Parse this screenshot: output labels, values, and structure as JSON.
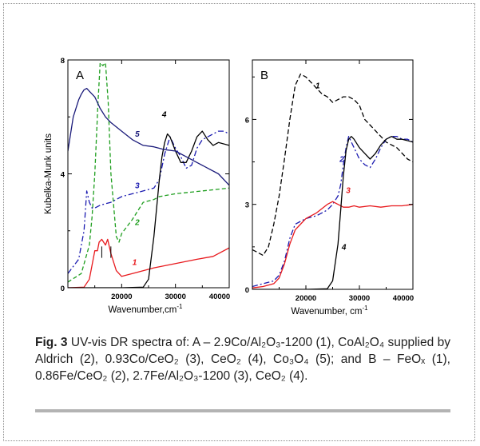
{
  "chart_data": [
    {
      "type": "line",
      "panel_label": "A",
      "xlabel": "Wavenumber,cm",
      "xlabel_sup": "-1",
      "ylabel": "Kubelka-Munk units",
      "xlim": [
        10000,
        40000
      ],
      "ylim": [
        0,
        8
      ],
      "xticks": [
        20000,
        30000,
        40000
      ],
      "yticks": [
        0,
        4,
        8
      ],
      "grid": false,
      "series": [
        {
          "name": "1",
          "color": "#e8191d",
          "dash": "solid",
          "x": [
            10000,
            13000,
            14000,
            14500,
            15000,
            15500,
            15800,
            16300,
            17000,
            17400,
            18000,
            19000,
            20000,
            22000,
            26000,
            30000,
            34000,
            37000,
            40000
          ],
          "y": [
            0,
            0.02,
            0.3,
            0.8,
            1.3,
            1.3,
            1.6,
            1.7,
            1.5,
            1.7,
            1.2,
            0.6,
            0.4,
            0.5,
            0.7,
            0.85,
            1.0,
            1.1,
            1.4
          ]
        },
        {
          "name": "2",
          "color": "#1e9e1e",
          "dash": "5,3",
          "x": [
            10000,
            12500,
            14000,
            14500,
            15000,
            15600,
            16000,
            16500,
            17000,
            17500,
            18000,
            19000,
            19500,
            20000,
            22000,
            24000,
            26000,
            27000,
            30000,
            35000,
            40000
          ],
          "y": [
            0.2,
            0.5,
            1.5,
            2.5,
            4.0,
            6.5,
            7.9,
            7.8,
            7.9,
            6.5,
            4.0,
            1.8,
            1.6,
            1.9,
            2.4,
            3.0,
            3.1,
            3.2,
            3.3,
            3.4,
            3.5
          ]
        },
        {
          "name": "3",
          "color": "#1a1ab0",
          "dash": "7,3,2,3",
          "x": [
            10000,
            12000,
            13000,
            13500,
            14000,
            14500,
            15000,
            16000,
            18000,
            20000,
            22000,
            24000,
            26000,
            27000,
            28000,
            29000,
            30000,
            31000,
            32000,
            33000,
            34000,
            35000,
            36000,
            37000,
            38000,
            39000,
            40000
          ],
          "y": [
            0.5,
            1.0,
            2.0,
            3.4,
            3.0,
            2.8,
            2.8,
            2.9,
            3.0,
            3.2,
            3.3,
            3.4,
            3.5,
            3.8,
            4.7,
            5.3,
            4.9,
            4.6,
            4.2,
            4.3,
            4.9,
            5.2,
            5.3,
            5.4,
            5.5,
            5.5,
            5.4
          ]
        },
        {
          "name": "4",
          "color": "#000000",
          "dash": "solid",
          "x": [
            10000,
            20000,
            24000,
            25000,
            26000,
            26500,
            27000,
            27500,
            28000,
            28500,
            29000,
            30000,
            31000,
            32000,
            33000,
            34000,
            35000,
            36000,
            37000,
            38000,
            40000
          ],
          "y": [
            0,
            0,
            0.02,
            0.3,
            1.8,
            2.8,
            3.8,
            4.6,
            5.1,
            5.4,
            5.3,
            4.8,
            4.4,
            4.4,
            4.8,
            5.3,
            5.5,
            5.2,
            5.0,
            5.1,
            5.0
          ]
        },
        {
          "name": "5",
          "color": "#1a1a7a",
          "dash": "solid",
          "x": [
            10000,
            11000,
            12000,
            12500,
            13000,
            13500,
            14000,
            15000,
            16000,
            17000,
            18000,
            20000,
            22000,
            24000,
            26000,
            28000,
            30000,
            32000,
            34000,
            36000,
            38000,
            40000
          ],
          "y": [
            4.8,
            6.0,
            6.6,
            6.8,
            6.95,
            7.0,
            6.9,
            6.7,
            6.3,
            6.0,
            5.8,
            5.5,
            5.2,
            5.0,
            4.95,
            4.85,
            4.8,
            4.6,
            4.4,
            4.2,
            4.0,
            3.6
          ]
        }
      ],
      "labels": [
        {
          "text": "5",
          "x": 22500,
          "y": 5.3,
          "color": "#1a1a7a"
        },
        {
          "text": "4",
          "x": 27500,
          "y": 6.0,
          "color": "#000000"
        },
        {
          "text": "3",
          "x": 22500,
          "y": 3.5,
          "color": "#1a1ab0"
        },
        {
          "text": "2",
          "x": 22500,
          "y": 2.2,
          "color": "#1e9e1e"
        },
        {
          "text": "1",
          "x": 22000,
          "y": 0.8,
          "color": "#e8191d"
        }
      ]
    },
    {
      "type": "line",
      "panel_label": "B",
      "xlabel": "Wavenumber, cm",
      "xlabel_sup": "-1",
      "ylabel": "",
      "xlim": [
        10000,
        40000
      ],
      "ylim": [
        0,
        8.1
      ],
      "xticks": [
        20000,
        30000,
        40000
      ],
      "yticks": [
        0,
        3,
        6
      ],
      "grid": false,
      "series": [
        {
          "name": "1",
          "color": "#000000",
          "dash": "6,3",
          "x": [
            10000,
            11000,
            12000,
            13000,
            14000,
            15000,
            16000,
            17000,
            18000,
            19000,
            20000,
            21000,
            22000,
            23000,
            24000,
            25000,
            26000,
            27000,
            28000,
            29000,
            30000,
            31000,
            32000,
            33000,
            34000,
            35000,
            36000,
            37000,
            38000,
            39000,
            40000
          ],
          "y": [
            1.4,
            1.3,
            1.2,
            1.5,
            2.3,
            3.3,
            4.6,
            6.0,
            7.2,
            7.6,
            7.5,
            7.3,
            7.1,
            6.9,
            6.8,
            6.6,
            6.7,
            6.8,
            6.8,
            6.7,
            6.5,
            6.0,
            5.8,
            5.6,
            5.4,
            5.2,
            5.1,
            5.0,
            4.8,
            4.6,
            4.5
          ]
        },
        {
          "name": "2",
          "color": "#1a1ab0",
          "dash": "7,3,2,3",
          "x": [
            10000,
            12000,
            14000,
            15000,
            16000,
            17000,
            18000,
            20000,
            22000,
            24000,
            25000,
            26000,
            26500,
            27000,
            27500,
            28000,
            29000,
            30000,
            31000,
            32000,
            33000,
            34000,
            35000,
            36000,
            37000,
            38000,
            39000,
            40000
          ],
          "y": [
            0.1,
            0.2,
            0.3,
            0.5,
            1.0,
            1.8,
            2.3,
            2.5,
            2.6,
            2.8,
            3.0,
            3.3,
            3.7,
            4.4,
            5.0,
            5.4,
            5.0,
            4.6,
            4.4,
            4.3,
            4.6,
            5.0,
            5.3,
            5.4,
            5.4,
            5.3,
            5.3,
            5.2
          ]
        },
        {
          "name": "3",
          "color": "#e8191d",
          "dash": "solid",
          "x": [
            10000,
            12000,
            14000,
            15000,
            16000,
            17000,
            18000,
            19000,
            20000,
            22000,
            24000,
            25000,
            26000,
            27000,
            28000,
            29000,
            30000,
            32000,
            34000,
            36000,
            38000,
            40000
          ],
          "y": [
            0.05,
            0.1,
            0.2,
            0.4,
            0.9,
            1.6,
            2.1,
            2.3,
            2.5,
            2.7,
            3.0,
            3.1,
            3.0,
            2.9,
            2.9,
            2.95,
            2.9,
            2.95,
            2.9,
            2.95,
            2.95,
            3.0
          ]
        },
        {
          "name": "4",
          "color": "#000000",
          "dash": "solid",
          "x": [
            10000,
            20000,
            24000,
            25000,
            26000,
            26500,
            27000,
            27500,
            28000,
            28500,
            29000,
            30000,
            31000,
            32000,
            33000,
            34000,
            35000,
            36000,
            37000,
            38000,
            40000
          ],
          "y": [
            0,
            0,
            0.02,
            0.3,
            1.6,
            2.8,
            4.0,
            4.9,
            5.3,
            5.4,
            5.3,
            5.0,
            4.8,
            4.6,
            4.8,
            5.1,
            5.3,
            5.4,
            5.3,
            5.3,
            5.2
          ]
        }
      ],
      "labels": [
        {
          "text": "1",
          "x": 21800,
          "y": 7.1,
          "color": "#000000"
        },
        {
          "text": "2",
          "x": 26300,
          "y": 4.5,
          "color": "#1a1ab0"
        },
        {
          "text": "3",
          "x": 27500,
          "y": 3.4,
          "color": "#e8191d"
        },
        {
          "text": "4",
          "x": 26700,
          "y": 1.4,
          "color": "#000000"
        }
      ]
    }
  ],
  "caption": {
    "fig": "Fig. 3",
    "text": " UV-vis DR spectra of: A – 2.9Co/Al₂O₃-1200 (1), CoAl₂O₄ supplied by Aldrich (2), 0.93Co/CeO₂ (3), CeO₂ (4), Co₃O₄ (5); and B – FeOₓ (1), 0.86Fe/CeO₂ (2), 2.7Fe/Al₂O₃-1200 (3), CeO₂ (4)."
  }
}
